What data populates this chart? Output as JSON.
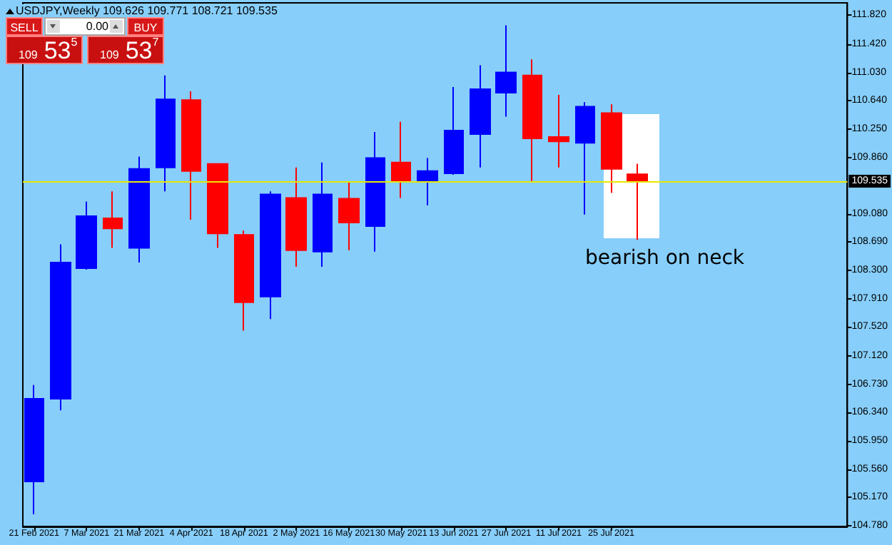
{
  "chart_data": {
    "type": "candlestick",
    "title": "USDJPY,Weekly 109.626 109.771 108.721 109.535",
    "x": [
      "2021-02-21",
      "2021-02-28",
      "2021-03-07",
      "2021-03-14",
      "2021-03-21",
      "2021-03-28",
      "2021-04-04",
      "2021-04-11",
      "2021-04-18",
      "2021-04-25",
      "2021-05-02",
      "2021-05-09",
      "2021-05-16",
      "2021-05-23",
      "2021-05-30",
      "2021-06-06",
      "2021-06-13",
      "2021-06-20",
      "2021-06-27",
      "2021-07-04",
      "2021-07-11",
      "2021-07-18",
      "2021-07-25",
      "2021-08-01"
    ],
    "ohlc": [
      [
        105.39,
        106.72,
        104.94,
        106.53
      ],
      [
        106.53,
        108.66,
        106.37,
        108.41
      ],
      [
        108.33,
        109.25,
        108.31,
        109.05
      ],
      [
        109.02,
        109.39,
        108.61,
        108.88
      ],
      [
        108.61,
        109.87,
        108.41,
        109.7
      ],
      [
        109.72,
        110.99,
        109.39,
        110.66
      ],
      [
        110.65,
        110.77,
        109.0,
        109.67
      ],
      [
        109.77,
        109.78,
        108.61,
        108.81
      ],
      [
        108.79,
        108.85,
        107.47,
        107.86
      ],
      [
        107.94,
        109.39,
        107.63,
        109.35
      ],
      [
        109.3,
        109.72,
        108.35,
        108.58
      ],
      [
        108.56,
        109.79,
        108.35,
        109.35
      ],
      [
        109.29,
        109.53,
        108.58,
        108.96
      ],
      [
        108.91,
        110.21,
        108.56,
        109.85
      ],
      [
        109.79,
        110.35,
        109.3,
        109.53
      ],
      [
        109.53,
        109.85,
        109.2,
        109.67
      ],
      [
        109.64,
        110.83,
        109.62,
        110.23
      ],
      [
        110.18,
        111.13,
        109.72,
        110.8
      ],
      [
        110.75,
        111.68,
        110.42,
        111.03
      ],
      [
        110.99,
        111.21,
        109.53,
        110.12
      ],
      [
        110.14,
        110.72,
        109.72,
        110.08
      ],
      [
        110.06,
        110.62,
        109.07,
        110.56
      ],
      [
        110.47,
        110.59,
        109.37,
        109.7
      ],
      [
        109.626,
        109.771,
        108.721,
        109.535
      ]
    ],
    "colors": [
      "#0000ff",
      "#0000ff",
      "#0000ff",
      "#ff0000",
      "#0000ff",
      "#0000ff",
      "#ff0000",
      "#ff0000",
      "#ff0000",
      "#0000ff",
      "#ff0000",
      "#0000ff",
      "#ff0000",
      "#0000ff",
      "#ff0000",
      "#0000ff",
      "#0000ff",
      "#0000ff",
      "#0000ff",
      "#ff0000",
      "#ff0000",
      "#0000ff",
      "#ff0000",
      "#ff0000"
    ],
    "xlim": [
      "2021-02-18",
      "2021-09-26"
    ],
    "xticks": [
      {
        "value": "2021-02-21",
        "label": "21 Feb 2021"
      },
      {
        "value": "2021-03-07",
        "label": "7 Mar 2021"
      },
      {
        "value": "2021-03-21",
        "label": "21 Mar 2021"
      },
      {
        "value": "2021-04-04",
        "label": "4 Apr 2021"
      },
      {
        "value": "2021-04-18",
        "label": "18 Apr 2021"
      },
      {
        "value": "2021-05-02",
        "label": "2 May 2021"
      },
      {
        "value": "2021-05-16",
        "label": "16 May 2021"
      },
      {
        "value": "2021-05-30",
        "label": "30 May 2021"
      },
      {
        "value": "2021-06-13",
        "label": "13 Jun 2021"
      },
      {
        "value": "2021-06-27",
        "label": "27 Jun 2021"
      },
      {
        "value": "2021-07-11",
        "label": "11 Jul 2021"
      },
      {
        "value": "2021-07-25",
        "label": "25 Jul 2021"
      }
    ],
    "ylim": [
      104.77,
      111.99
    ],
    "yticks": [
      {
        "value": 111.82,
        "label": "111.820"
      },
      {
        "value": 111.42,
        "label": "111.420"
      },
      {
        "value": 111.03,
        "label": "111.030"
      },
      {
        "value": 110.64,
        "label": "110.640"
      },
      {
        "value": 110.25,
        "label": "110.250"
      },
      {
        "value": 109.86,
        "label": "109.860"
      },
      {
        "value": 109.08,
        "label": "109.080"
      },
      {
        "value": 108.69,
        "label": "108.690"
      },
      {
        "value": 108.3,
        "label": "108.300"
      },
      {
        "value": 107.91,
        "label": "107.910"
      },
      {
        "value": 107.52,
        "label": "107.520"
      },
      {
        "value": 107.12,
        "label": "107.120"
      },
      {
        "value": 106.73,
        "label": "106.730"
      },
      {
        "value": 106.34,
        "label": "106.340"
      },
      {
        "value": 105.95,
        "label": "105.950"
      },
      {
        "value": 105.56,
        "label": "105.560"
      },
      {
        "value": 105.17,
        "label": "105.170"
      },
      {
        "value": 104.78,
        "label": "104.780"
      }
    ],
    "ref_lines": [
      {
        "axis": "y",
        "value": 109.535,
        "label": "109.535",
        "color": "#e8e800"
      }
    ],
    "annotations": [
      "SELL",
      "0.00",
      "BUY",
      "109 53$^{5}$",
      "109 53$^{7}$",
      "bearish on neck"
    ]
  }
}
